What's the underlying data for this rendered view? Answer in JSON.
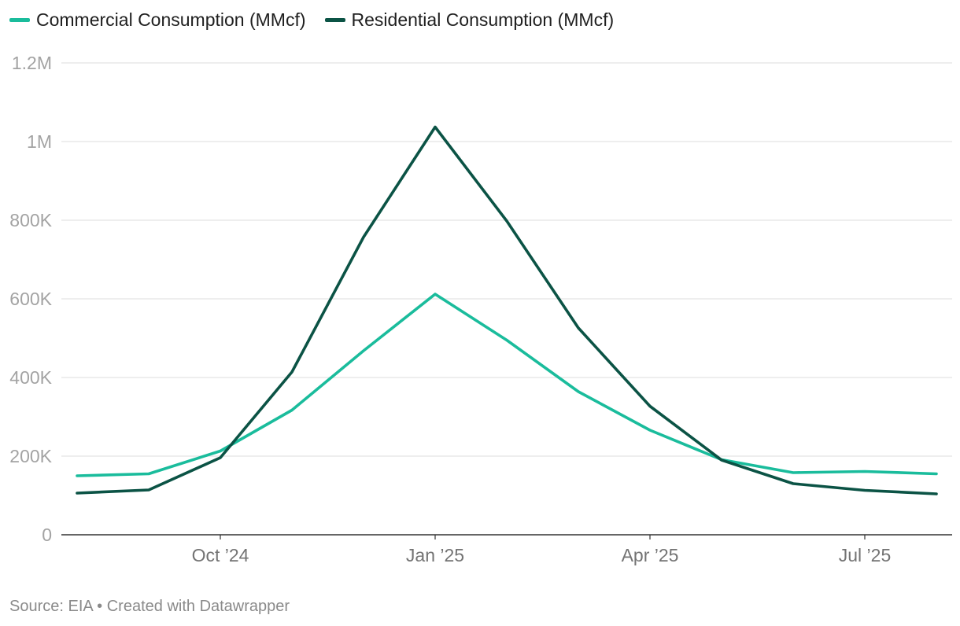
{
  "chart_data": {
    "type": "line",
    "x": [
      "2024-08",
      "2024-09",
      "2024-10",
      "2024-11",
      "2024-12",
      "2025-01",
      "2025-02",
      "2025-03",
      "2025-04",
      "2025-05",
      "2025-06",
      "2025-07",
      "2025-08"
    ],
    "series": [
      {
        "name": "Commercial Consumption (MMcf)",
        "color": "#1abc9c",
        "values": [
          150000,
          155000,
          213000,
          317000,
          468000,
          612000,
          495000,
          364000,
          266000,
          191000,
          158000,
          161000,
          155000
        ]
      },
      {
        "name": "Residential Consumption (MMcf)",
        "color": "#0b5345",
        "values": [
          106000,
          114000,
          196000,
          414000,
          757000,
          1037000,
          798000,
          526000,
          327000,
          190000,
          130000,
          113000,
          104000
        ]
      }
    ],
    "ylim": [
      0,
      1200000
    ],
    "y_ticks": [
      {
        "value": 0,
        "label": "0"
      },
      {
        "value": 200000,
        "label": "200K"
      },
      {
        "value": 400000,
        "label": "400K"
      },
      {
        "value": 600000,
        "label": "600K"
      },
      {
        "value": 800000,
        "label": "800K"
      },
      {
        "value": 1000000,
        "label": "1M"
      },
      {
        "value": 1200000,
        "label": "1.2M"
      }
    ],
    "x_ticks": [
      {
        "index": 2,
        "label": "Oct ’24"
      },
      {
        "index": 5,
        "label": "Jan ’25"
      },
      {
        "index": 8,
        "label": "Apr ’25"
      },
      {
        "index": 11,
        "label": "Jul ’25"
      }
    ],
    "grid": true,
    "legend_position": "top-left"
  },
  "source": "Source: EIA • Created with Datawrapper"
}
